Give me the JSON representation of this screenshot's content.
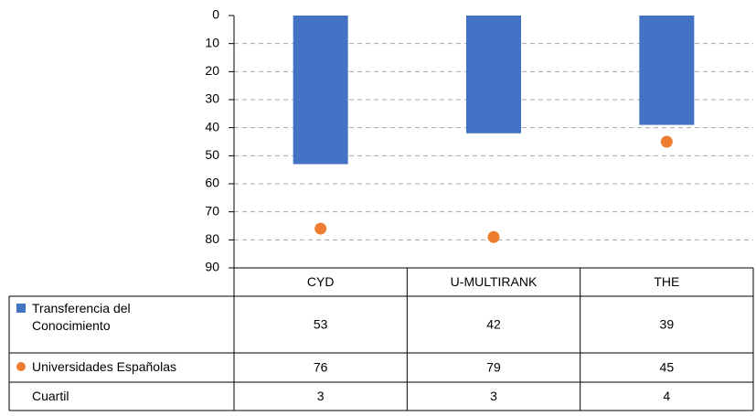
{
  "chart_data": {
    "type": "bar",
    "categories": [
      "CYD",
      "U-MULTIRANK",
      "THE"
    ],
    "series": [
      {
        "name": "Transferencia del Conocimiento",
        "color": "#4472c4",
        "mark": "bar",
        "values": [
          53,
          42,
          39
        ]
      },
      {
        "name": "Universidades Españolas",
        "color": "#ed7d31",
        "mark": "dot",
        "values": [
          76,
          79,
          45
        ]
      },
      {
        "name": "Cuartil",
        "values": [
          3,
          3,
          4
        ]
      }
    ],
    "ylim": [
      0,
      90
    ],
    "yticks": [
      0,
      10,
      20,
      30,
      40,
      50,
      60,
      70,
      80,
      90
    ],
    "y_inverted": true,
    "grid": true,
    "data_table": true
  }
}
